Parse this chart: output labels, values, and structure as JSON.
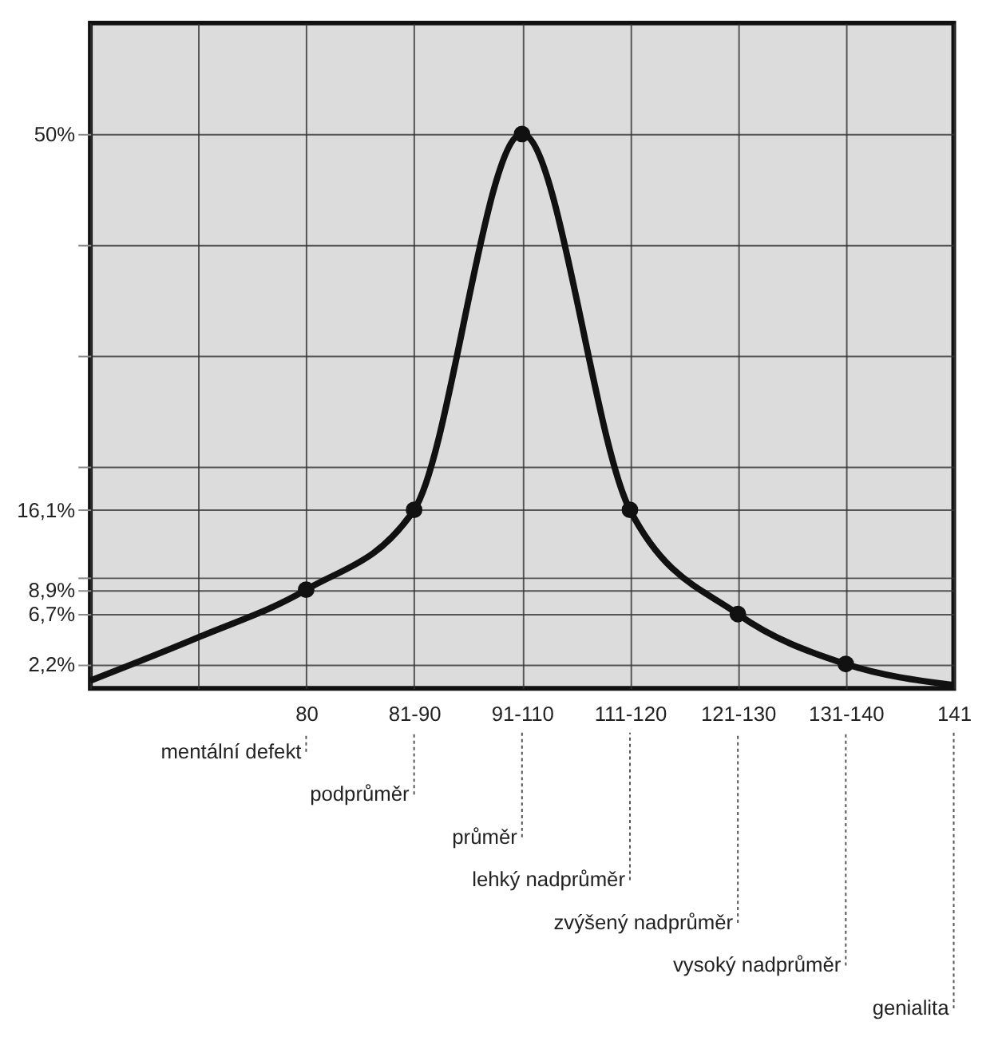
{
  "chart_data": {
    "type": "line",
    "categories": [
      null,
      null,
      "80",
      "81-90",
      "91-110",
      "111-120",
      "121-130",
      "131-140",
      "141"
    ],
    "series": [
      {
        "color": "#111111",
        "values": [
          0.7,
          4.6,
          8.9,
          16.1,
          50,
          16.1,
          6.7,
          2.2,
          0.3
        ],
        "marker": "none"
      },
      {
        "type": "scatter",
        "color": "#111111",
        "values": [
          null,
          null,
          8.9,
          16.1,
          50,
          16.1,
          6.7,
          2.2,
          null
        ],
        "marker": "circle"
      }
    ],
    "ylim": [
      0,
      60
    ],
    "yticks": [
      {
        "value": 2.2,
        "label": "2,2%"
      },
      {
        "value": 6.7,
        "label": "6,7%"
      },
      {
        "value": 8.9,
        "label": "8,9%"
      },
      {
        "value": 10,
        "label": null
      },
      {
        "value": 16.1,
        "label": "16,1%"
      },
      {
        "value": 20,
        "label": null
      },
      {
        "value": 30,
        "label": null
      },
      {
        "value": 40,
        "label": null
      },
      {
        "value": 50,
        "label": "50%"
      }
    ],
    "grid": true,
    "annotations": [
      "mentální defekt",
      "podprůměr",
      "průměr",
      "lehký nadprůměr",
      "zvýšený nadprůměr",
      "vysoký nadprůměr",
      "genialita"
    ]
  }
}
